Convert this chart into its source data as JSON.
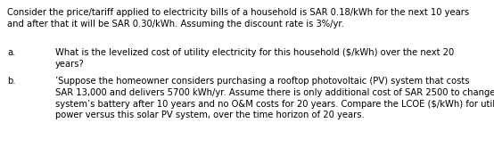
{
  "background_color": "#ffffff",
  "text_color": "#000000",
  "font_size": 7.2,
  "font_family": "DejaVu Sans",
  "line1": "Consider the price/tariff applied to electricity bills of a household is SAR 0.18/kWh for the next 10 years",
  "line2": "and after that it will be SAR 0.30/kWh. Assuming the discount rate is 3%/yr.",
  "label_a": "a.",
  "text_a": "What is the levelized cost of utility electricity for this household ($/kWh) over the next 20\nyears?",
  "label_b": "b.",
  "text_b": "’Suppose the homeowner considers purchasing a rooftop photovoltaic (PV) system that costs\nSAR 13,000 and delivers 5700 kWh/yr. Assume there is only additional cost of SAR 2500 to change the\nsystem’s battery after 10 years and no O&M costs for 20 years. Compare the LCOE ($/kWh) for utility\npower versus this solar PV system, over the time horizon of 20 years."
}
